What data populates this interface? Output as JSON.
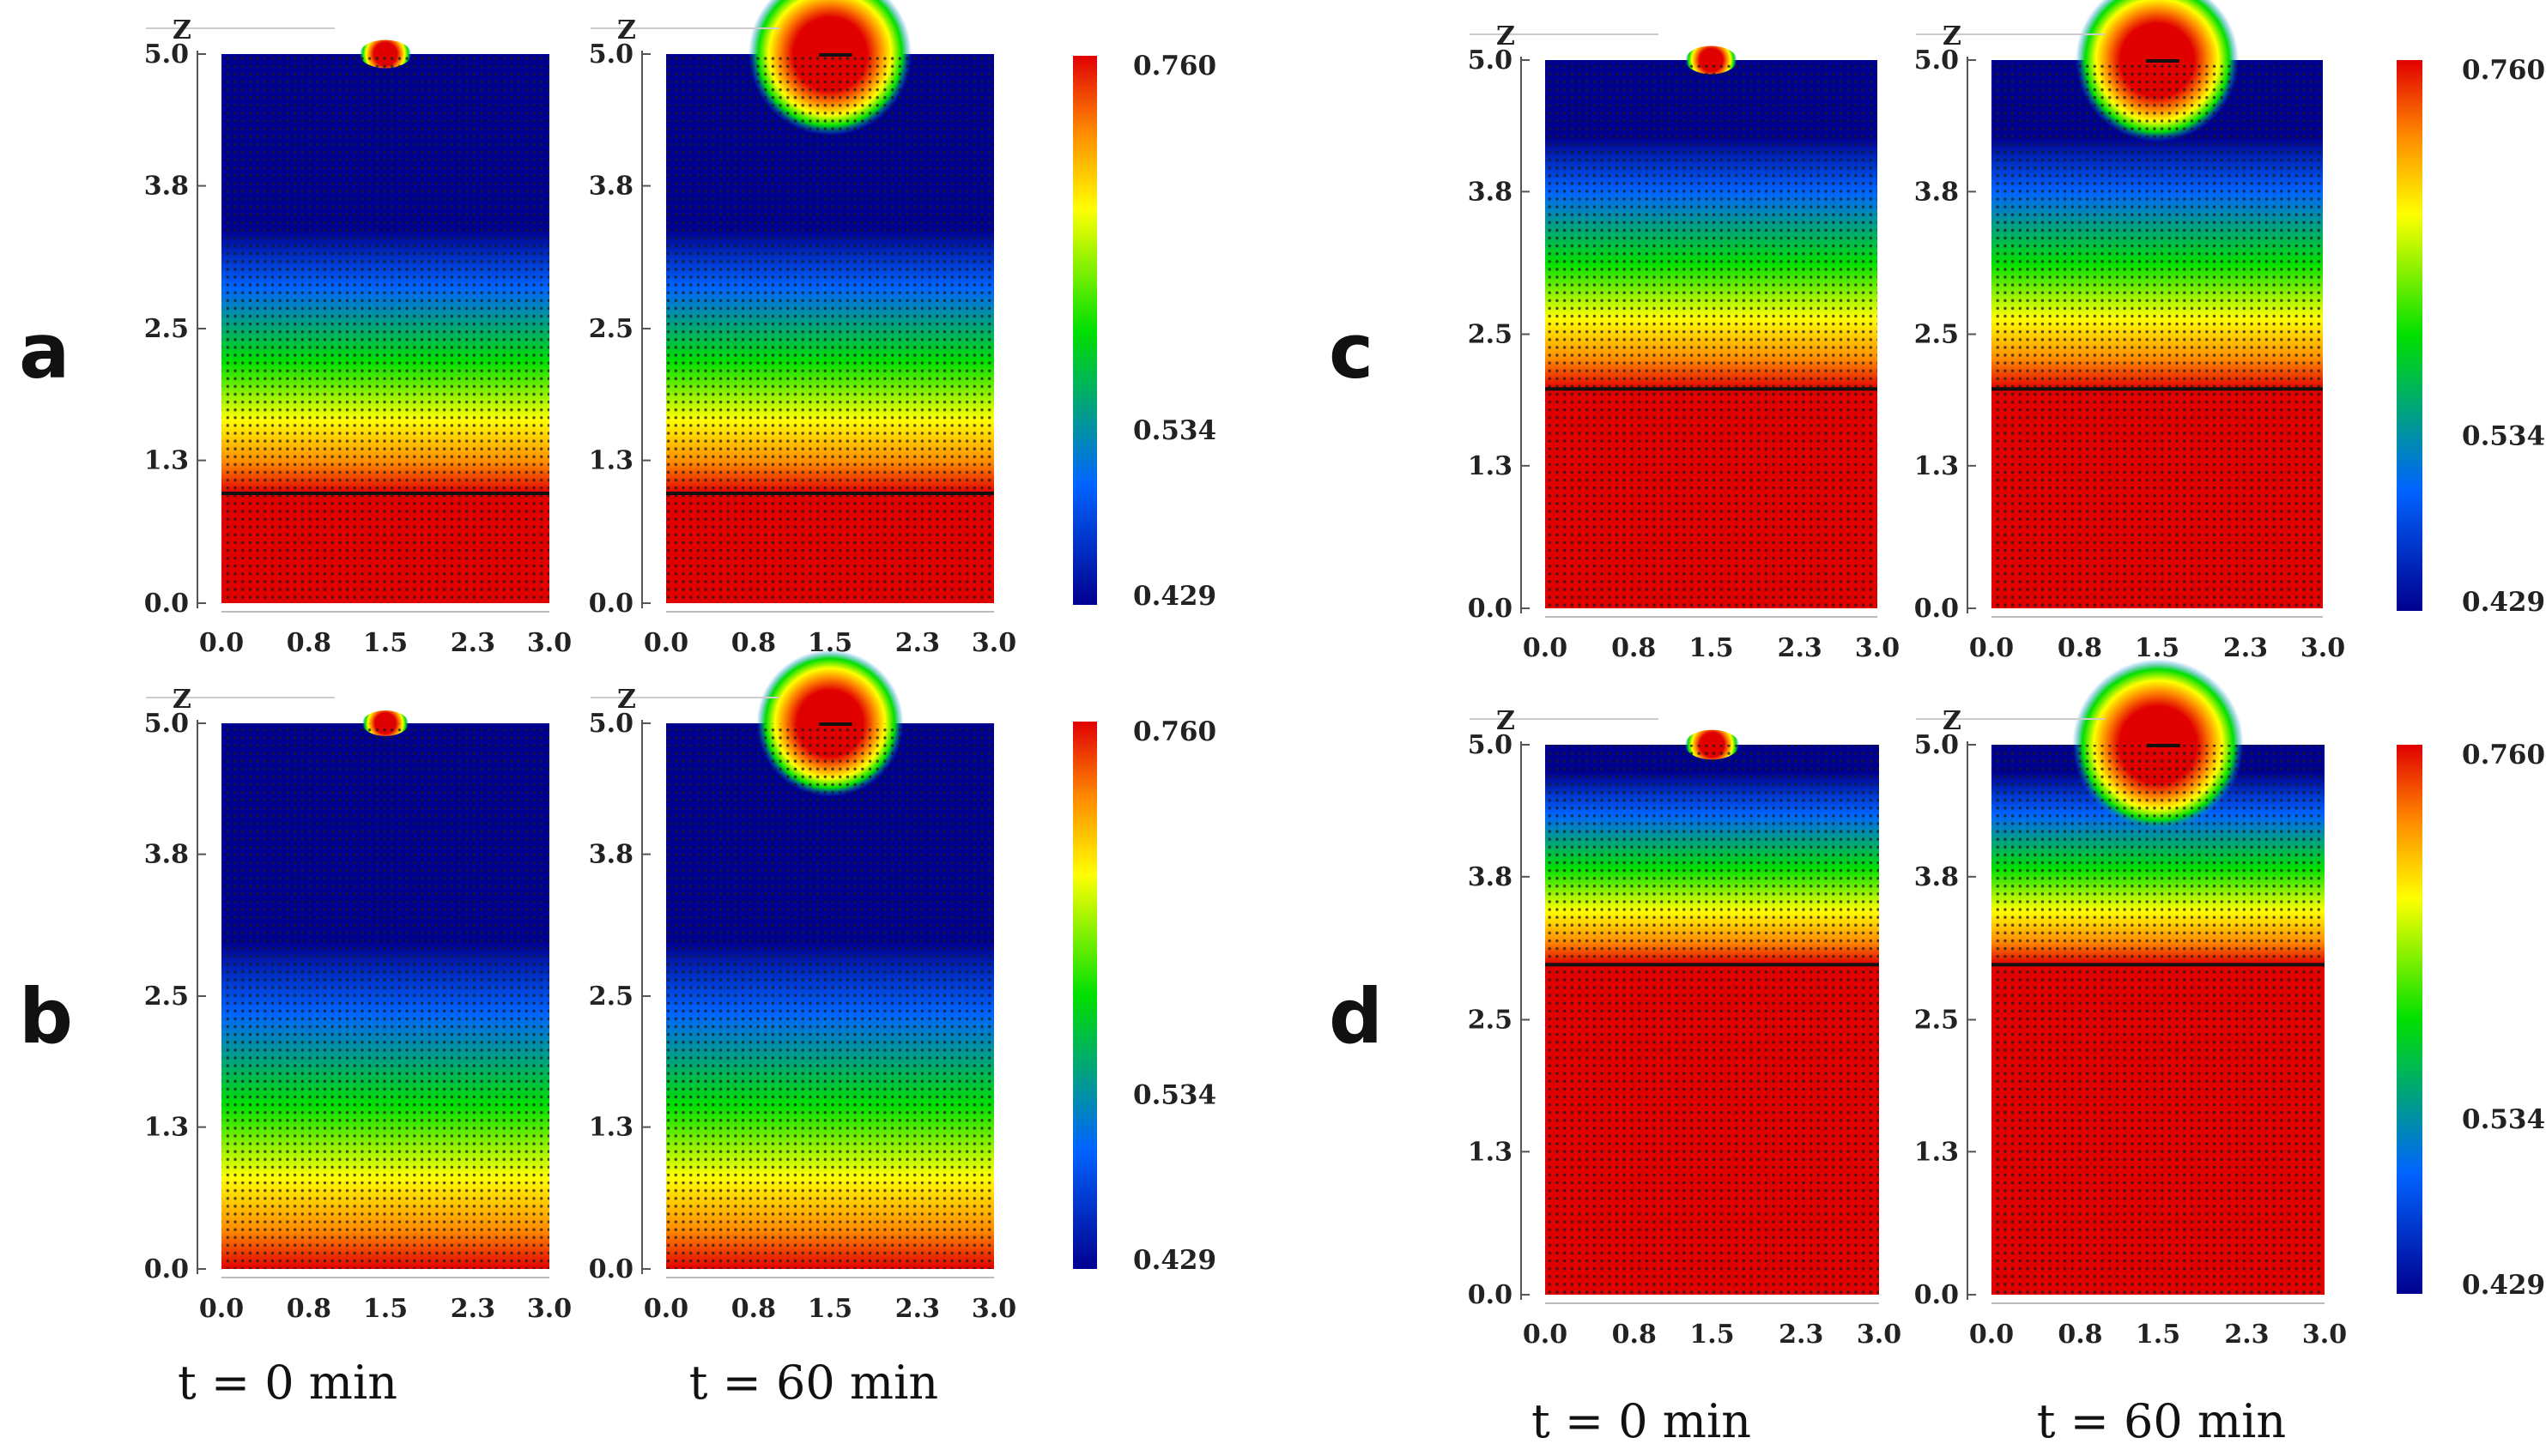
{
  "chart_data": {
    "type": "heatmap",
    "title": "",
    "xlabel": "",
    "ylabel": "Z",
    "xlim": [
      0.0,
      3.0
    ],
    "ylim": [
      0.0,
      5.0
    ],
    "x_ticks": [
      "0.0",
      "0.8",
      "1.5",
      "2.3",
      "3.0"
    ],
    "y_ticks": [
      "0.0",
      "1.3",
      "2.5",
      "3.8",
      "5.0"
    ],
    "colorbar": {
      "min": 0.429,
      "mid": 0.534,
      "max": 0.76,
      "labels": [
        "0.760",
        "0.534",
        "0.429"
      ]
    },
    "colors": {
      "low": "#00008f",
      "blue": "#0064ff",
      "green": "#00e000",
      "yellow": "#ffff00",
      "orange": "#ff8c00",
      "high": "#e10000"
    },
    "time_labels": [
      "t = 0 min",
      "t = 60 min"
    ],
    "panels": [
      {
        "letter": "a",
        "interface_z": 1.0,
        "gradient_top": 3.4,
        "plume_scale": 1.0
      },
      {
        "letter": "b",
        "interface_z": 0.0,
        "gradient_top": 3.0,
        "plume_scale": 0.9
      },
      {
        "letter": "c",
        "interface_z": 2.0,
        "gradient_top": 4.3,
        "plume_scale": 1.0
      },
      {
        "letter": "d",
        "interface_z": 3.0,
        "gradient_top": 4.75,
        "plume_scale": 1.05
      }
    ]
  }
}
